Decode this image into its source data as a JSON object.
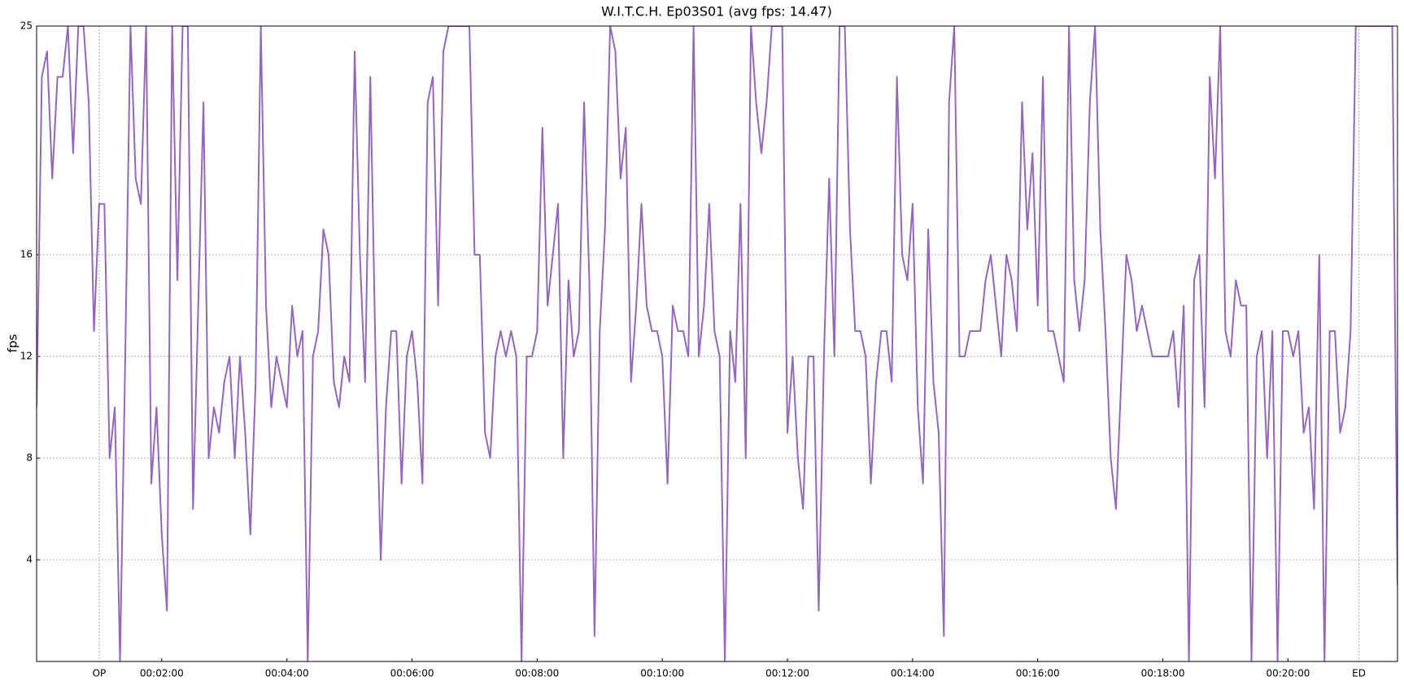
{
  "chart_data": {
    "type": "line",
    "title": "W.I.T.C.H. Ep03S01 (avg fps: 14.47)",
    "y_label": "fps",
    "xlim": [
      0,
      1305
    ],
    "ylim": [
      0,
      25
    ],
    "yticks": [
      4,
      8,
      12,
      16,
      25
    ],
    "xticks": [
      {
        "value": 120,
        "label": "00:02:00"
      },
      {
        "value": 240,
        "label": "00:04:00"
      },
      {
        "value": 360,
        "label": "00:06:00"
      },
      {
        "value": 480,
        "label": "00:08:00"
      },
      {
        "value": 600,
        "label": "00:10:00"
      },
      {
        "value": 720,
        "label": "00:12:00"
      },
      {
        "value": 840,
        "label": "00:14:00"
      },
      {
        "value": 960,
        "label": "00:16:00"
      },
      {
        "value": 1080,
        "label": "00:18:00"
      },
      {
        "value": 1200,
        "label": "00:20:00"
      }
    ],
    "xmarkers": [
      {
        "value": 60,
        "label": "OP"
      },
      {
        "value": 1268,
        "label": "ED"
      }
    ],
    "grid": true,
    "series": [
      {
        "color": "#9467bd",
        "x": [
          0,
          5,
          10,
          15,
          20,
          25,
          30,
          35,
          40,
          45,
          50,
          55,
          60,
          65,
          70,
          75,
          80,
          85,
          90,
          95,
          100,
          105,
          110,
          115,
          120,
          125,
          130,
          135,
          140,
          145,
          150,
          155,
          160,
          165,
          170,
          175,
          180,
          185,
          190,
          195,
          200,
          205,
          210,
          215,
          220,
          225,
          230,
          235,
          240,
          245,
          250,
          255,
          260,
          265,
          270,
          275,
          280,
          285,
          290,
          295,
          300,
          305,
          310,
          315,
          320,
          325,
          330,
          335,
          340,
          345,
          350,
          355,
          360,
          365,
          370,
          375,
          380,
          385,
          390,
          395,
          400,
          405,
          410,
          415,
          420,
          425,
          430,
          435,
          440,
          445,
          450,
          455,
          460,
          465,
          470,
          475,
          480,
          485,
          490,
          495,
          500,
          505,
          510,
          515,
          520,
          525,
          530,
          535,
          540,
          545,
          550,
          555,
          560,
          565,
          570,
          575,
          580,
          585,
          590,
          595,
          600,
          605,
          610,
          615,
          620,
          625,
          630,
          635,
          640,
          645,
          650,
          655,
          660,
          665,
          670,
          675,
          680,
          685,
          690,
          695,
          700,
          705,
          710,
          715,
          720,
          725,
          730,
          735,
          740,
          745,
          750,
          755,
          760,
          765,
          770,
          775,
          780,
          785,
          790,
          795,
          800,
          805,
          810,
          815,
          820,
          825,
          830,
          835,
          840,
          845,
          850,
          855,
          860,
          865,
          870,
          875,
          880,
          885,
          890,
          895,
          900,
          905,
          910,
          915,
          920,
          925,
          930,
          935,
          940,
          945,
          950,
          955,
          960,
          965,
          970,
          975,
          980,
          985,
          990,
          995,
          1000,
          1005,
          1010,
          1015,
          1020,
          1025,
          1030,
          1035,
          1040,
          1045,
          1050,
          1055,
          1060,
          1065,
          1070,
          1075,
          1080,
          1085,
          1090,
          1095,
          1100,
          1105,
          1110,
          1115,
          1120,
          1125,
          1130,
          1135,
          1140,
          1145,
          1150,
          1155,
          1160,
          1165,
          1170,
          1175,
          1180,
          1185,
          1190,
          1195,
          1200,
          1205,
          1210,
          1215,
          1220,
          1225,
          1230,
          1235,
          1240,
          1245,
          1250,
          1255,
          1260,
          1265,
          1270,
          1275,
          1280,
          1285,
          1290,
          1295,
          1300,
          1305
        ],
        "values": [
          10,
          23,
          24,
          19,
          23,
          23,
          25,
          20,
          25,
          25,
          22,
          13,
          18,
          18,
          8,
          10,
          0,
          12,
          25,
          19,
          18,
          25,
          7,
          10,
          5,
          2,
          25,
          15,
          25,
          25,
          6,
          14,
          22,
          8,
          10,
          9,
          11,
          12,
          8,
          12,
          9,
          5,
          11,
          25,
          14,
          10,
          12,
          11,
          10,
          14,
          12,
          13,
          0,
          12,
          13,
          17,
          16,
          11,
          10,
          12,
          11,
          24,
          16,
          11,
          23,
          12,
          4,
          10,
          13,
          13,
          7,
          12,
          13,
          11,
          7,
          22,
          23,
          14,
          24,
          25,
          25,
          25,
          25,
          25,
          16,
          16,
          9,
          8,
          12,
          13,
          12,
          13,
          12,
          0,
          12,
          12,
          13,
          21,
          14,
          16,
          18,
          8,
          15,
          12,
          13,
          22,
          15,
          1,
          13,
          17,
          25,
          24,
          19,
          21,
          11,
          14,
          18,
          14,
          13,
          13,
          12,
          7,
          14,
          13,
          13,
          12,
          25,
          12,
          14,
          18,
          13,
          12,
          0,
          13,
          11,
          18,
          8,
          25,
          22,
          20,
          22,
          25,
          25,
          25,
          9,
          12,
          8,
          6,
          12,
          12,
          2,
          12,
          19,
          12,
          25,
          25,
          17,
          13,
          13,
          12,
          7,
          11,
          13,
          13,
          11,
          23,
          16,
          15,
          18,
          10,
          7,
          17,
          11,
          9,
          1,
          22,
          25,
          12,
          12,
          13,
          13,
          13,
          15,
          16,
          14,
          12,
          16,
          15,
          13,
          22,
          17,
          20,
          14,
          23,
          13,
          13,
          12,
          11,
          25,
          15,
          13,
          15,
          22,
          25,
          17,
          13,
          8,
          6,
          11,
          16,
          15,
          13,
          14,
          13,
          12,
          12,
          12,
          12,
          13,
          10,
          14,
          0,
          15,
          16,
          10,
          23,
          19,
          25,
          13,
          12,
          15,
          14,
          14,
          0,
          12,
          13,
          8,
          13,
          0,
          13,
          13,
          12,
          13,
          9,
          10,
          6,
          16,
          0,
          13,
          13,
          9,
          10,
          13,
          25,
          25,
          25,
          25,
          25,
          25,
          25,
          25,
          3
        ]
      }
    ]
  }
}
